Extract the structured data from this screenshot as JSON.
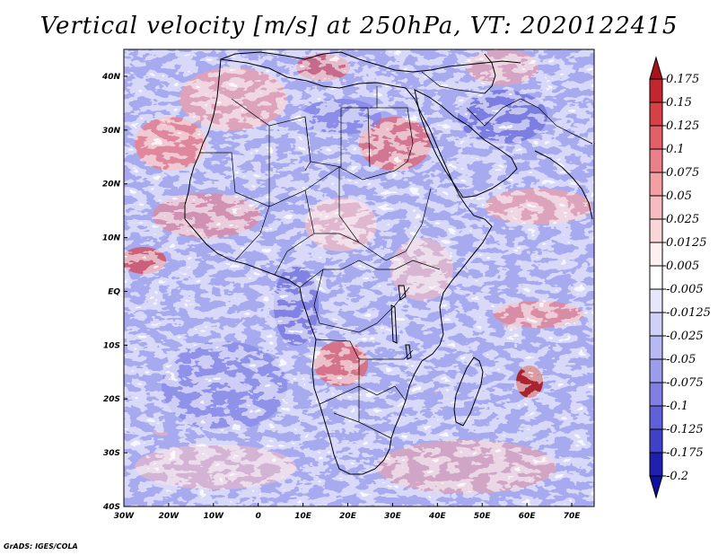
{
  "title": "Vertical velocity [m/s] at 250hPa, VT: 2020122415",
  "credit": "GrADS: IGES/COLA",
  "map": {
    "lon_range": [
      -30,
      75
    ],
    "lat_range": [
      -40,
      45
    ],
    "lon_ticks": [
      {
        "value": -30,
        "label": "30W"
      },
      {
        "value": -20,
        "label": "20W"
      },
      {
        "value": -10,
        "label": "10W"
      },
      {
        "value": 0,
        "label": "0"
      },
      {
        "value": 10,
        "label": "10E"
      },
      {
        "value": 20,
        "label": "20E"
      },
      {
        "value": 30,
        "label": "30E"
      },
      {
        "value": 40,
        "label": "40E"
      },
      {
        "value": 50,
        "label": "50E"
      },
      {
        "value": 60,
        "label": "60E"
      },
      {
        "value": 70,
        "label": "70E"
      }
    ],
    "lat_ticks": [
      {
        "value": 40,
        "label": "40N"
      },
      {
        "value": 30,
        "label": "30N"
      },
      {
        "value": 20,
        "label": "20N"
      },
      {
        "value": 10,
        "label": "10N"
      },
      {
        "value": 0,
        "label": "EQ"
      },
      {
        "value": -10,
        "label": "10S"
      },
      {
        "value": -20,
        "label": "20S"
      },
      {
        "value": -30,
        "label": "30S"
      },
      {
        "value": -40,
        "label": "40S"
      }
    ]
  },
  "colorbar": {
    "labels": [
      "0.175",
      "0.15",
      "0.125",
      "0.1",
      "0.075",
      "0.05",
      "0.025",
      "0.0125",
      "0.005",
      "-0.005",
      "-0.0125",
      "-0.025",
      "-0.05",
      "-0.075",
      "-0.1",
      "-0.125",
      "-0.175",
      "-0.2"
    ],
    "colors": [
      "#a8141c",
      "#c42630",
      "#d84048",
      "#e46068",
      "#ec8088",
      "#f2a0a4",
      "#f6bcc0",
      "#fad6d8",
      "#fdf0f0",
      "#ffffff",
      "#e6e6fc",
      "#d0d0f8",
      "#b8b8f2",
      "#9c9cec",
      "#8080e4",
      "#6060d8",
      "#4040c8",
      "#2020b0",
      "#1010a0"
    ]
  }
}
